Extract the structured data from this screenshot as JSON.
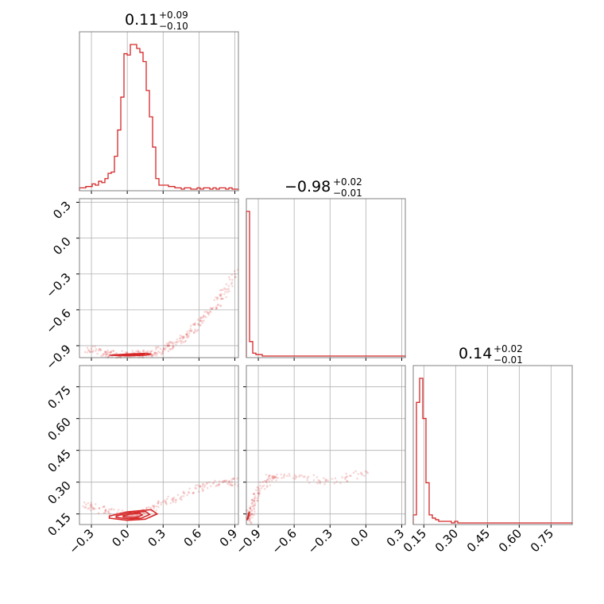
{
  "figure": {
    "type": "corner-plot",
    "color": "#d62728",
    "grid_color": "#b0b0b0",
    "frame_color": "#808080"
  },
  "titles": [
    {
      "main": "0.11",
      "plus": "+0.09",
      "minus": "−0.10"
    },
    {
      "main": "−0.98",
      "plus": "+0.02",
      "minus": "−0.01"
    },
    {
      "main": "0.14",
      "plus": "+0.02",
      "minus": "−0.01"
    }
  ],
  "axes": {
    "p1": {
      "ticks": [
        -0.3,
        0.0,
        0.3,
        0.6,
        0.9
      ],
      "tick_labels": [
        "−0.3",
        "0.0",
        "0.3",
        "0.6",
        "0.9"
      ],
      "range": [
        -0.4,
        0.93
      ]
    },
    "p2": {
      "ticks": [
        -0.9,
        -0.6,
        -0.3,
        0.0,
        0.3
      ],
      "tick_labels": [
        "−0.9",
        "−0.6",
        "−0.3",
        "0.0",
        "0.3"
      ],
      "range": [
        -1.0,
        0.33
      ]
    },
    "p3": {
      "ticks": [
        0.15,
        0.3,
        0.45,
        0.6,
        0.75
      ],
      "tick_labels": [
        "0.15",
        "0.30",
        "0.45",
        "0.60",
        "0.75"
      ],
      "range": [
        0.1,
        0.85
      ]
    }
  },
  "chart_data": [
    {
      "type": "bar",
      "panel": "hist-p1",
      "x_range": [
        -0.4,
        0.93
      ],
      "bin_width": 0.0266,
      "counts": [
        1,
        1,
        2,
        2,
        4,
        3,
        6,
        5,
        8,
        12,
        13,
        25,
        45,
        70,
        103,
        102,
        110,
        110,
        107,
        104,
        97,
        75,
        55,
        32,
        8,
        3,
        3,
        3,
        2,
        2,
        1,
        1,
        0,
        1,
        1,
        0,
        0,
        1,
        0,
        1,
        1,
        0,
        1,
        0,
        1,
        1,
        0,
        1,
        0,
        0
      ],
      "bin_start": -0.4,
      "tick_labels": [
        "−0.3",
        "0.0",
        "0.3",
        "0.6",
        "0.9"
      ]
    },
    {
      "type": "bar",
      "panel": "hist-p2",
      "bin_start": -1.0,
      "bin_width": 0.0266,
      "counts": [
        100,
        10,
        2,
        1,
        1,
        0,
        0,
        0,
        0,
        0,
        0,
        0,
        0,
        0,
        0,
        0,
        0,
        0,
        0,
        0,
        0,
        0,
        0,
        0,
        0,
        0,
        0,
        0,
        0,
        0,
        0,
        0,
        0,
        0,
        0,
        0,
        0,
        0,
        0,
        0,
        0,
        0,
        0,
        0,
        0,
        0,
        0,
        0,
        0,
        0
      ],
      "tick_labels": [
        "−0.9",
        "−0.6",
        "−0.3",
        "0.0",
        "0.3"
      ]
    },
    {
      "type": "bar",
      "panel": "hist-p3",
      "bin_start": 0.1,
      "bin_width": 0.015,
      "counts": [
        5,
        75,
        90,
        65,
        25,
        5,
        3,
        2,
        1,
        1,
        1,
        1,
        0,
        1,
        0,
        0,
        0,
        0,
        0,
        0,
        0,
        0,
        0,
        0,
        0,
        0,
        0,
        0,
        0,
        0,
        0,
        0,
        0,
        0,
        0,
        0,
        0,
        0,
        0,
        0,
        0,
        0,
        0,
        0,
        0,
        0,
        0,
        0,
        0,
        0
      ],
      "tick_labels": [
        "0.15",
        "0.30",
        "0.45",
        "0.60",
        "0.75"
      ]
    },
    {
      "type": "scatter",
      "panel": "p1-vs-p2",
      "trend_x": [
        -0.33,
        -0.2,
        -0.1,
        0.0,
        0.1,
        0.2,
        0.3,
        0.4,
        0.5,
        0.6,
        0.7,
        0.8,
        0.93
      ],
      "trend_y": [
        -0.93,
        -0.96,
        -0.975,
        -0.98,
        -0.975,
        -0.96,
        -0.93,
        -0.88,
        -0.81,
        -0.72,
        -0.6,
        -0.47,
        -0.28
      ],
      "contour_x": [
        -0.15,
        0.0,
        0.15,
        0.2,
        0.15,
        0.0,
        -0.15
      ],
      "contour_y": [
        -0.98,
        -0.985,
        -0.98,
        -0.97,
        -0.965,
        -0.97,
        -0.98
      ]
    },
    {
      "type": "scatter",
      "panel": "p1-vs-p3",
      "trend_x": [
        -0.35,
        -0.2,
        0.0,
        0.2,
        0.4,
        0.6,
        0.8,
        0.93
      ],
      "trend_y": [
        0.19,
        0.17,
        0.14,
        0.17,
        0.22,
        0.27,
        0.3,
        0.3
      ],
      "contour_x": [
        -0.15,
        0.0,
        0.15,
        0.25,
        0.2,
        0.0,
        -0.15
      ],
      "contour_y": [
        0.13,
        0.12,
        0.125,
        0.15,
        0.17,
        0.16,
        0.14
      ]
    },
    {
      "type": "scatter",
      "panel": "p2-vs-p3",
      "trend_x": [
        -0.99,
        -0.97,
        -0.94,
        -0.9,
        -0.8,
        -0.6,
        -0.3,
        0.0
      ],
      "trend_y": [
        0.12,
        0.15,
        0.2,
        0.26,
        0.32,
        0.33,
        0.3,
        0.35
      ],
      "contour_x": [
        -0.995,
        -0.985,
        -0.975,
        -0.985
      ],
      "contour_y": [
        0.12,
        0.14,
        0.16,
        0.13
      ]
    }
  ]
}
